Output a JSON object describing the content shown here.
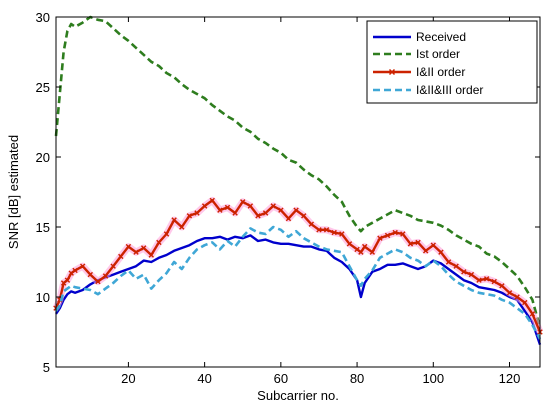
{
  "chart_data": {
    "type": "line",
    "title": "",
    "xlabel": "Subcarrier no.",
    "ylabel": "SNR [dB] estimated",
    "xlim": [
      1,
      128
    ],
    "ylim": [
      5,
      30
    ],
    "xticks": [
      20,
      40,
      60,
      80,
      100,
      120
    ],
    "yticks": [
      5,
      10,
      15,
      20,
      25,
      30
    ],
    "xtick_labels": [
      "20",
      "40",
      "60",
      "80",
      "100",
      "120"
    ],
    "ytick_labels": [
      "5",
      "10",
      "15",
      "20",
      "25",
      "30"
    ],
    "grid": false,
    "legend_position": "top-right",
    "x": [
      1,
      2,
      3,
      4,
      5,
      6,
      8,
      10,
      12,
      14,
      16,
      18,
      20,
      22,
      24,
      26,
      28,
      30,
      32,
      34,
      36,
      38,
      40,
      42,
      44,
      46,
      48,
      50,
      52,
      54,
      56,
      58,
      60,
      62,
      64,
      66,
      68,
      70,
      72,
      74,
      76,
      78,
      80,
      81,
      82,
      84,
      86,
      88,
      90,
      92,
      94,
      96,
      98,
      100,
      102,
      104,
      106,
      108,
      110,
      112,
      114,
      116,
      118,
      120,
      122,
      124,
      126,
      128
    ],
    "series": [
      {
        "name": "Received",
        "color": "#0000cc",
        "style": "solid",
        "values": [
          8.8,
          9.2,
          9.8,
          10.2,
          10.4,
          10.3,
          10.5,
          10.9,
          11.2,
          11.4,
          11.6,
          11.8,
          12.0,
          12.2,
          12.6,
          12.5,
          12.8,
          13.0,
          13.3,
          13.5,
          13.7,
          14.0,
          14.2,
          14.2,
          14.3,
          14.1,
          14.3,
          14.2,
          14.4,
          14.0,
          14.1,
          13.9,
          13.8,
          13.8,
          13.7,
          13.6,
          13.6,
          13.4,
          13.3,
          12.8,
          12.5,
          12.0,
          11.2,
          10.0,
          11.0,
          11.8,
          12.0,
          12.3,
          12.3,
          12.4,
          12.2,
          12.0,
          12.2,
          12.6,
          12.4,
          12.0,
          11.6,
          11.2,
          11.0,
          10.7,
          10.6,
          10.5,
          10.3,
          10.0,
          9.8,
          9.0,
          8.2,
          6.6
        ]
      },
      {
        "name": "Ist order",
        "color": "#2e7d1e",
        "style": "dashed",
        "values": [
          21.5,
          24.5,
          27.5,
          29.0,
          29.5,
          29.3,
          29.6,
          30.0,
          29.8,
          29.7,
          29.2,
          28.7,
          28.3,
          27.8,
          27.3,
          26.8,
          26.5,
          26.0,
          25.7,
          25.2,
          24.8,
          24.5,
          24.2,
          23.7,
          23.3,
          22.9,
          22.6,
          22.1,
          21.8,
          21.3,
          21.0,
          20.6,
          20.3,
          19.8,
          19.6,
          19.1,
          18.7,
          18.4,
          17.9,
          17.3,
          16.8,
          15.8,
          15.0,
          14.7,
          15.0,
          15.3,
          15.6,
          15.9,
          16.2,
          16.0,
          15.8,
          15.5,
          15.4,
          15.3,
          15.1,
          14.8,
          14.4,
          14.1,
          13.8,
          13.6,
          13.1,
          12.9,
          12.5,
          12.0,
          11.5,
          10.7,
          9.8,
          7.8
        ]
      },
      {
        "name": "I&II order",
        "color": "#cc2200",
        "style": "solid-marker",
        "values": [
          9.2,
          9.8,
          11.0,
          11.2,
          11.7,
          11.9,
          12.2,
          11.6,
          11.1,
          11.5,
          12.2,
          12.9,
          13.6,
          13.2,
          13.5,
          13.0,
          13.9,
          14.5,
          15.5,
          15.0,
          15.8,
          16.0,
          16.5,
          16.9,
          16.2,
          16.4,
          16.0,
          16.8,
          16.5,
          15.8,
          16.0,
          16.5,
          16.2,
          15.6,
          16.2,
          15.8,
          15.2,
          14.8,
          14.8,
          14.6,
          14.5,
          13.8,
          13.4,
          13.2,
          13.6,
          13.2,
          14.2,
          14.4,
          14.6,
          14.5,
          13.8,
          13.9,
          13.3,
          13.7,
          13.2,
          12.5,
          12.2,
          11.8,
          11.6,
          11.2,
          11.3,
          11.1,
          10.8,
          10.3,
          10.0,
          9.6,
          8.8,
          7.5
        ]
      },
      {
        "name": "I&II&III order",
        "color": "#3fa7d6",
        "style": "dashed",
        "values": [
          9.0,
          9.4,
          10.4,
          10.6,
          10.8,
          10.7,
          10.6,
          10.5,
          10.2,
          10.6,
          11.0,
          11.5,
          11.9,
          11.3,
          11.6,
          10.6,
          11.2,
          11.7,
          12.5,
          12.0,
          12.8,
          13.4,
          13.7,
          13.9,
          13.4,
          14.0,
          13.6,
          14.3,
          14.9,
          14.6,
          14.5,
          15.0,
          14.8,
          14.3,
          14.7,
          14.2,
          13.9,
          13.6,
          13.4,
          13.3,
          13.2,
          12.2,
          11.2,
          10.8,
          11.3,
          11.9,
          12.8,
          13.1,
          13.4,
          13.2,
          12.8,
          12.6,
          12.2,
          12.6,
          12.2,
          11.6,
          11.1,
          10.8,
          10.5,
          10.3,
          10.2,
          10.1,
          9.8,
          9.6,
          9.2,
          8.8,
          8.0,
          7.0
        ]
      }
    ]
  }
}
